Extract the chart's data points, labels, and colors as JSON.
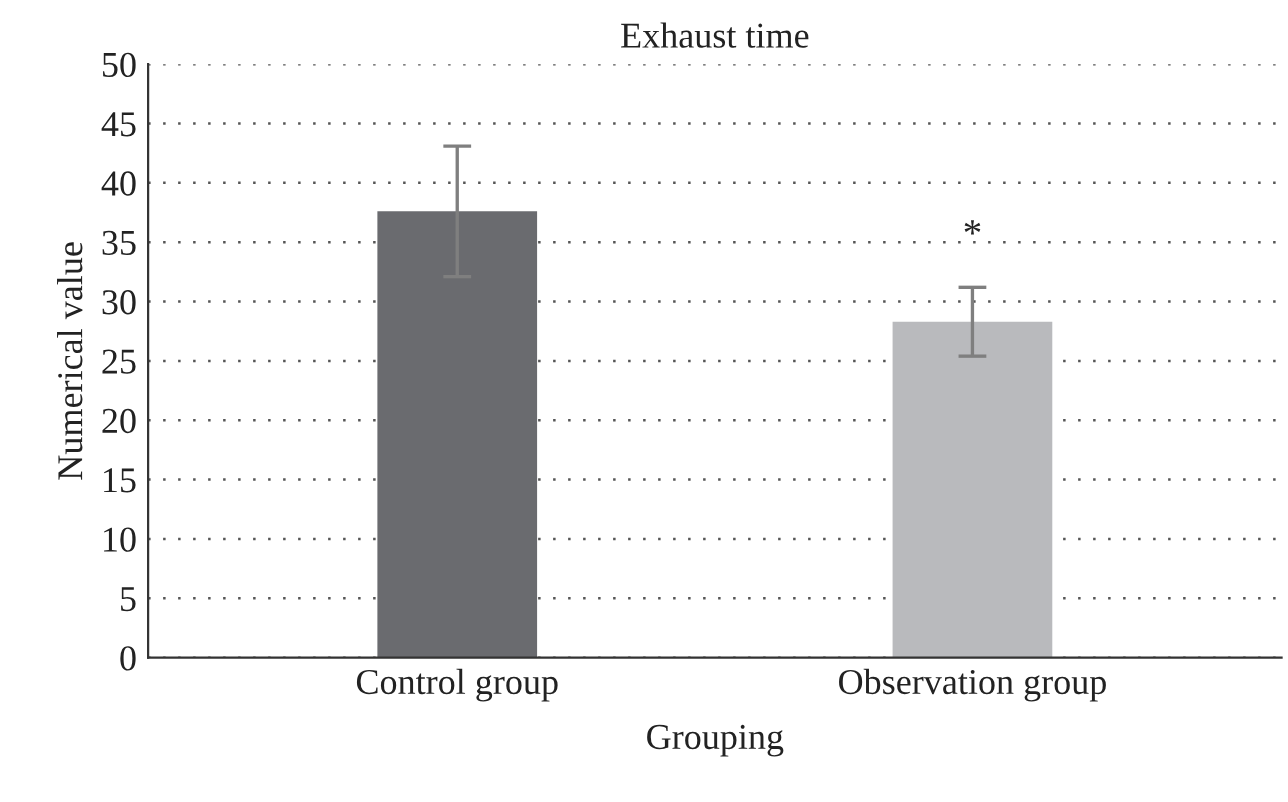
{
  "chart_data": {
    "type": "bar",
    "title": "Exhaust time",
    "xlabel": "Grouping",
    "ylabel": "Numerical value",
    "categories": [
      "Control group",
      "Observation group"
    ],
    "values": [
      37.6,
      28.3
    ],
    "colors": [
      "#6a6b6f",
      "#b9babd"
    ],
    "errors": [
      5.5,
      2.9
    ],
    "ylim": [
      0,
      50
    ],
    "yticks": [
      0,
      5,
      10,
      15,
      20,
      25,
      30,
      35,
      40,
      45,
      50
    ],
    "grid": "y",
    "annotations": [
      "*"
    ]
  }
}
